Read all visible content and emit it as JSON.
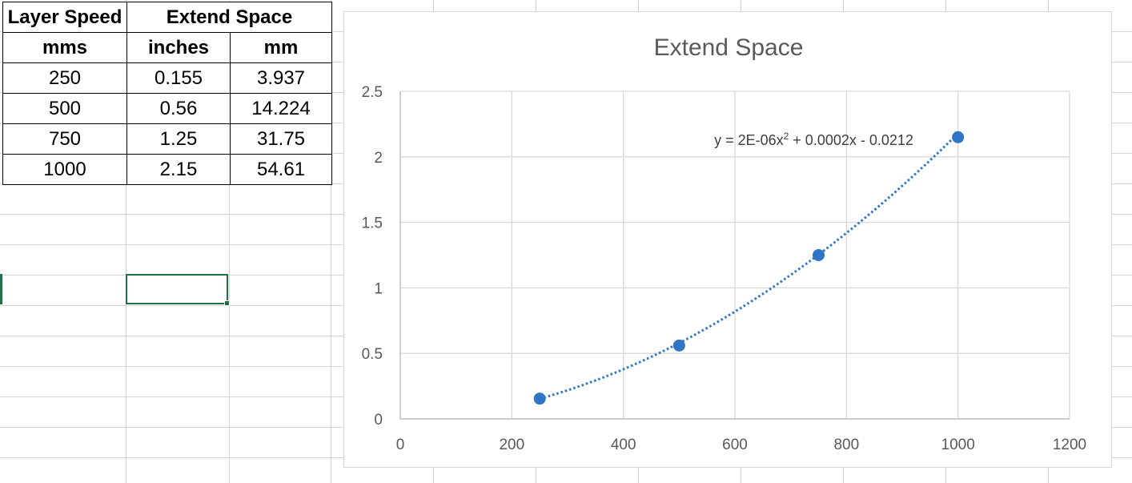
{
  "table": {
    "header1": [
      "Layer Speed",
      "Extend Space"
    ],
    "header2": [
      "mms",
      "inches",
      "mm"
    ],
    "rows": [
      [
        "250",
        "0.155",
        "3.937"
      ],
      [
        "500",
        "0.56",
        "14.224"
      ],
      [
        "750",
        "1.25",
        "31.75"
      ],
      [
        "1000",
        "2.15",
        "54.61"
      ]
    ]
  },
  "chart_data": {
    "type": "scatter",
    "title": "Extend Space",
    "x": [
      250,
      500,
      750,
      1000
    ],
    "y": [
      0.155,
      0.56,
      1.25,
      2.15
    ],
    "xlim": [
      0,
      1200
    ],
    "ylim": [
      0,
      2.5
    ],
    "xticks": [
      0,
      200,
      400,
      600,
      800,
      1000,
      1200
    ],
    "yticks": [
      0,
      0.5,
      1,
      1.5,
      2,
      2.5
    ],
    "grid": true,
    "marker_color": "#2e75c6",
    "trendline": {
      "type": "polynomial",
      "order": 2,
      "style": "dotted",
      "coefficients": [
        2e-06,
        0.0002,
        -0.0212
      ],
      "equation_prefix": "y = 2E-06x",
      "equation_sup": "2",
      "equation_suffix": " + 0.0002x - 0.0212"
    }
  }
}
